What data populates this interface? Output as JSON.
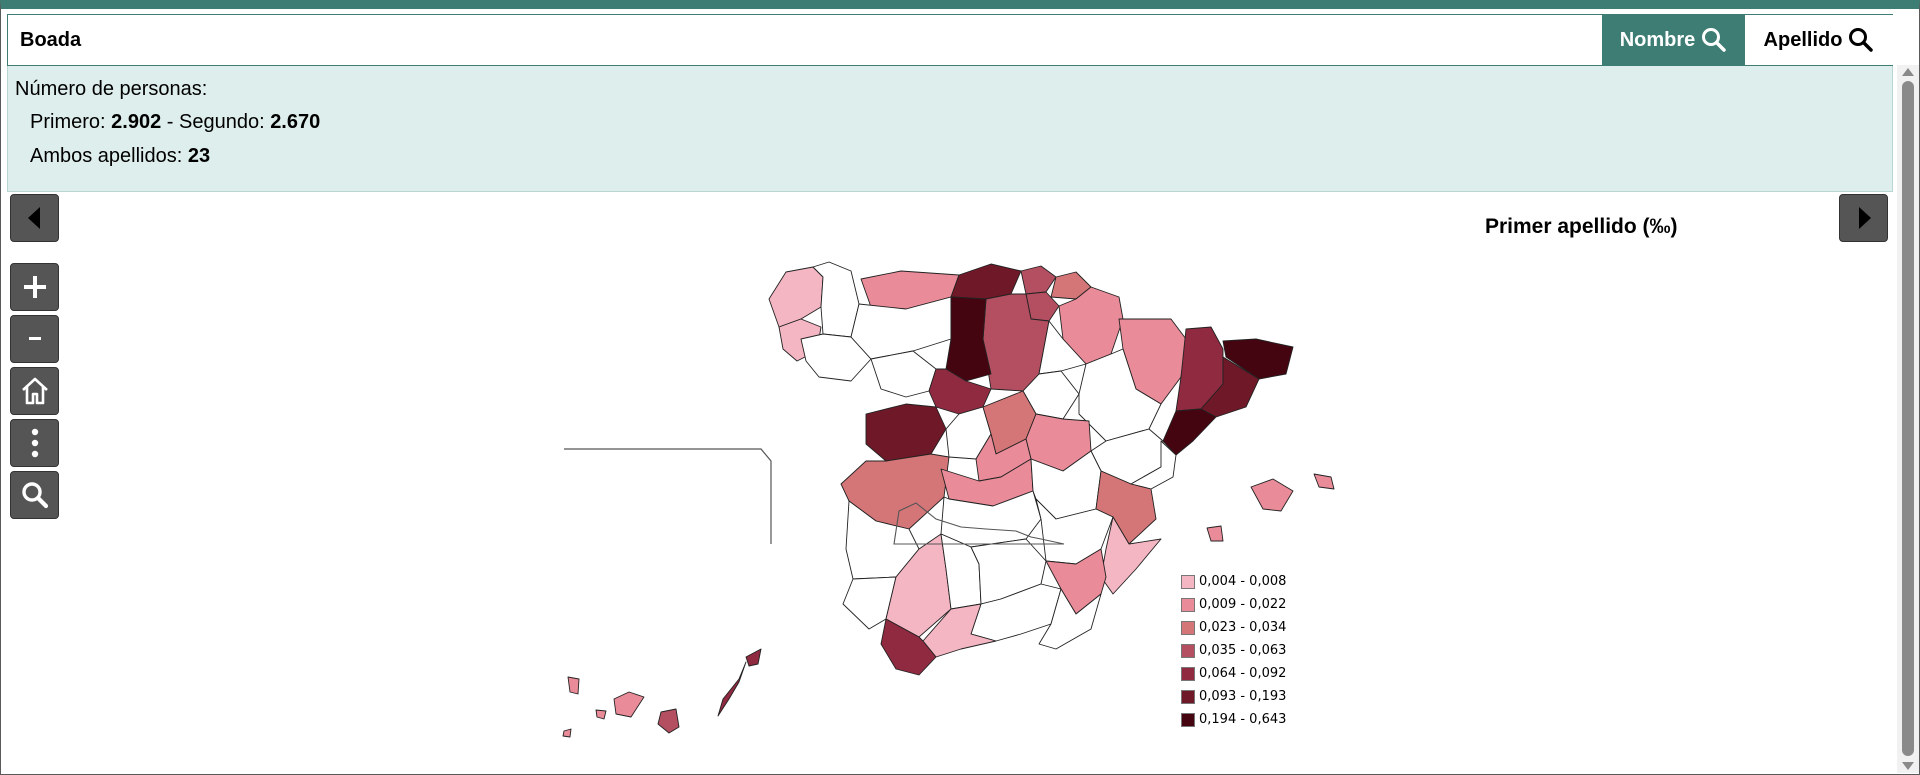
{
  "search": {
    "value": "Boada",
    "nombre_label": "Nombre",
    "apellido_label": "Apellido"
  },
  "info": {
    "heading": "Número de personas:",
    "primero_label": "Primero:",
    "primero_value": "2.902",
    "separator": " - ",
    "segundo_label": "Segundo:",
    "segundo_value": "2.670",
    "ambos_label": "Ambos apellidos:",
    "ambos_value": "23"
  },
  "map": {
    "title": "Primer apellido (‰)",
    "controls": [
      "zoom-in",
      "zoom-out",
      "home",
      "more",
      "search"
    ],
    "colors": {
      "none": "#ffffff",
      "c1": "#f4b6c3",
      "c2": "#e98b98",
      "c3": "#d47577",
      "c4": "#b44f62",
      "c5": "#8f2a40",
      "c6": "#6e1828",
      "c7": "#450510"
    },
    "legend": [
      {
        "label": "0,004 - 0,008",
        "color": "#f4b6c3"
      },
      {
        "label": "0,009 - 0,022",
        "color": "#e98b98"
      },
      {
        "label": "0,023 - 0,034",
        "color": "#d47577"
      },
      {
        "label": "0,035 - 0,063",
        "color": "#b44f62"
      },
      {
        "label": "0,064 - 0,092",
        "color": "#8f2a40"
      },
      {
        "label": "0,093 - 0,193",
        "color": "#6e1828"
      },
      {
        "label": "0,194 - 0,643",
        "color": "#450510"
      }
    ]
  }
}
